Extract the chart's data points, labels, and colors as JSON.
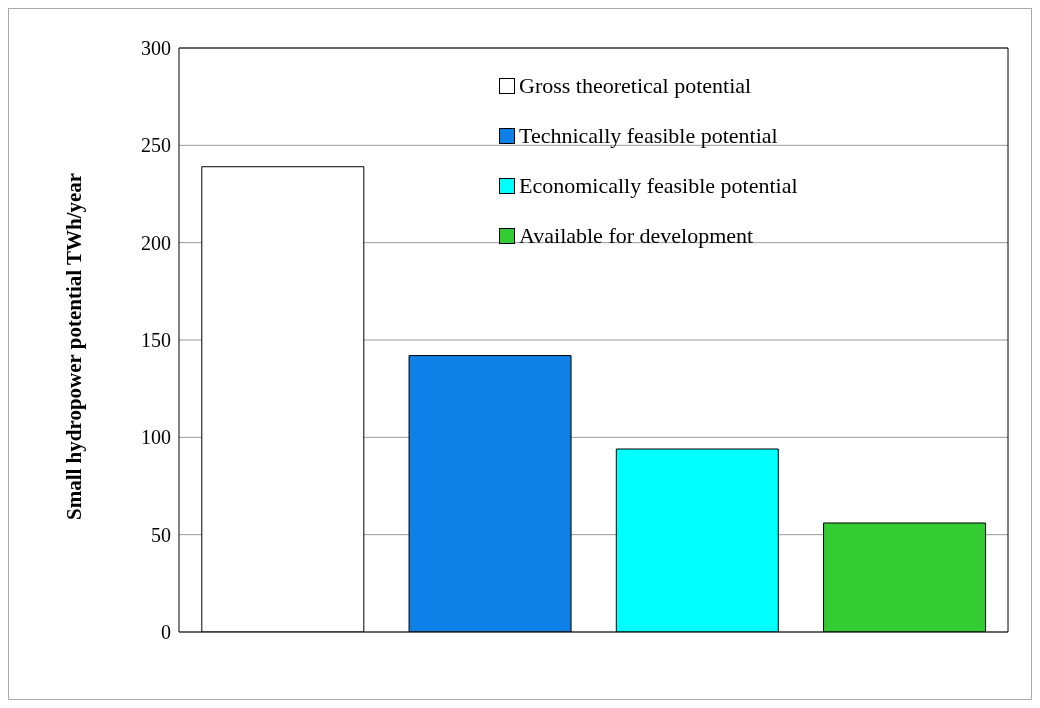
{
  "chart_data": {
    "type": "bar",
    "ylabel": "Small hydropower  potential TWh/year",
    "categories": [
      null,
      null,
      null,
      null
    ],
    "series": [
      {
        "name": "Gross theoretical potential",
        "color": "#ffffff",
        "values": [
          239,
          null,
          null,
          null
        ]
      },
      {
        "name": "Technically feasible potential",
        "color": "#0f80e6",
        "values": [
          null,
          142,
          null,
          null
        ]
      },
      {
        "name": "Economically feasible potential",
        "color": "#00ffff",
        "values": [
          null,
          null,
          94,
          null
        ]
      },
      {
        "name": "Available for development",
        "color": "#33cc33",
        "values": [
          null,
          null,
          null,
          56
        ]
      }
    ],
    "ylim": [
      0,
      300
    ],
    "yticks": [
      0,
      50,
      100,
      150,
      200,
      250,
      300
    ],
    "grid": "y",
    "legend": "top right"
  }
}
